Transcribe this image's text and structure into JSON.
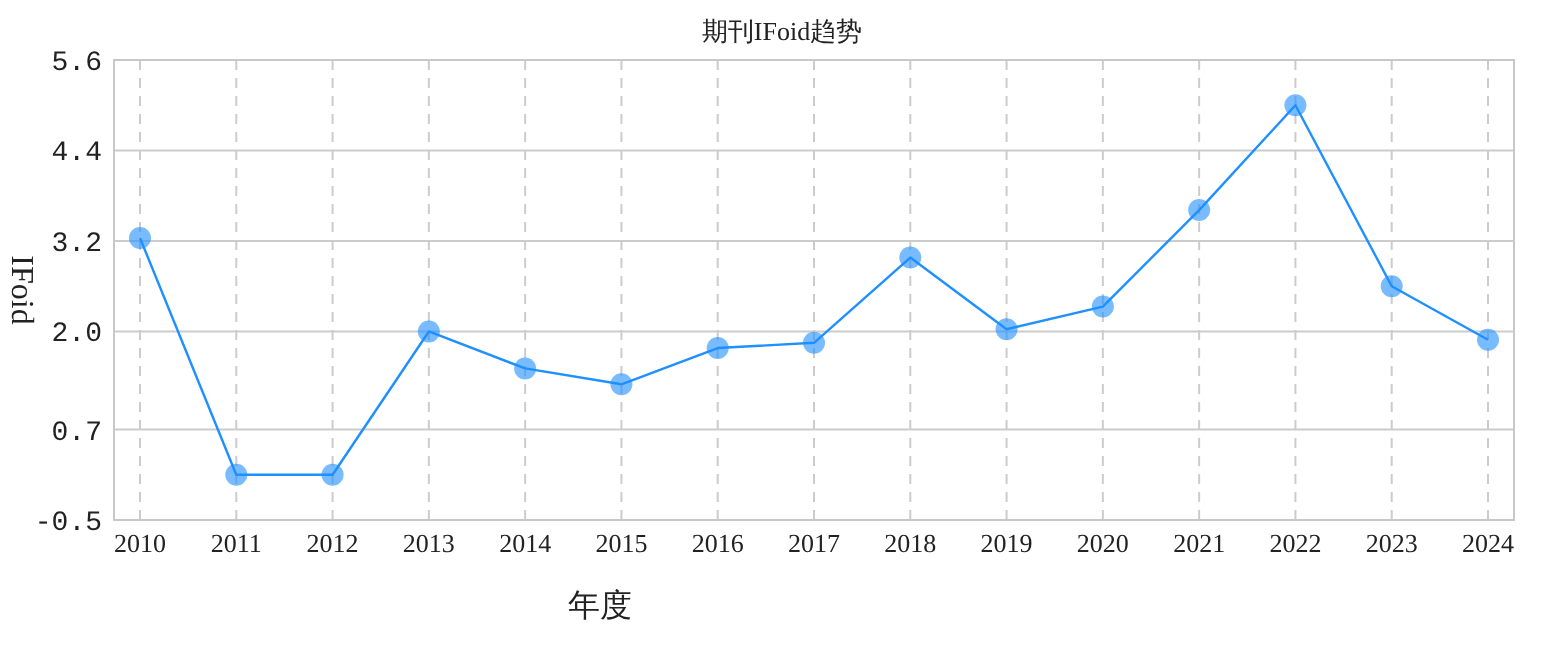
{
  "chart_data": {
    "type": "line",
    "title": "期刊IFoid趋势",
    "xlabel": "年度",
    "ylabel": "IFoid",
    "categories": [
      "2010",
      "2011",
      "2012",
      "2013",
      "2014",
      "2015",
      "2016",
      "2017",
      "2018",
      "2019",
      "2020",
      "2021",
      "2022",
      "2023",
      "2024"
    ],
    "series": [
      {
        "color": "#1e90ff",
        "values": [
          3.24,
          0.1,
          0.1,
          2.0,
          1.51,
          1.3,
          1.78,
          1.85,
          2.98,
          2.03,
          2.33,
          3.61,
          5.0,
          2.6,
          1.89
        ]
      }
    ],
    "ylim": [
      -0.5,
      5.6
    ],
    "yticks": [
      -0.5,
      0.7,
      {
        "value": 2.0,
        "label": "2.0"
      },
      3.2,
      4.4,
      5.6
    ],
    "grid": true,
    "marker": "circle",
    "line_style": "solid"
  }
}
